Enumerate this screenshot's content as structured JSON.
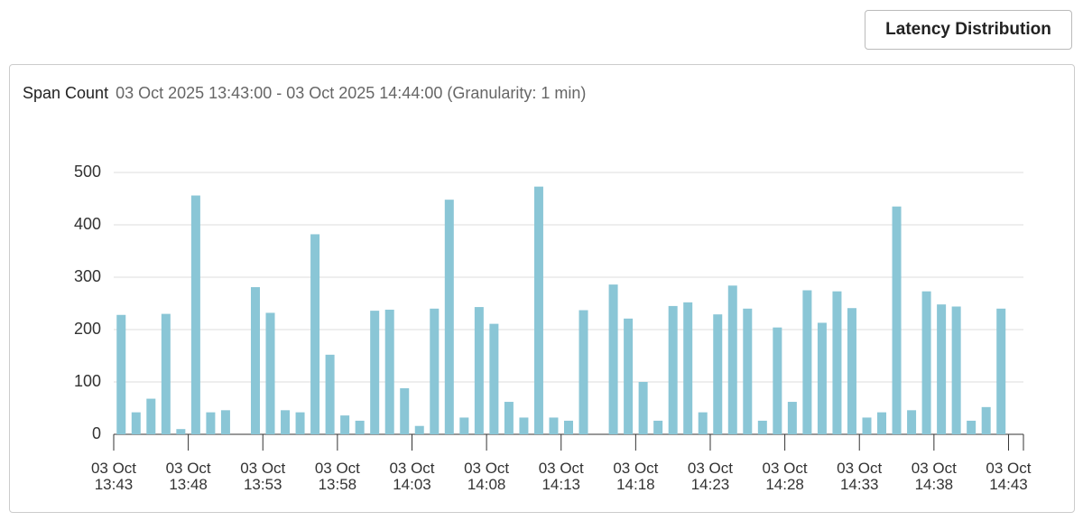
{
  "header": {
    "button": "Latency Distribution"
  },
  "chart_data": {
    "type": "bar",
    "title": "Span Count",
    "subtitle": "03 Oct 2025 13:43:00 - 03 Oct 2025 14:44:00 (Granularity: 1 min)",
    "categories": [
      "03 Oct 13:43",
      null,
      null,
      null,
      null,
      "03 Oct 13:48",
      null,
      null,
      null,
      null,
      "03 Oct 13:53",
      null,
      null,
      null,
      null,
      "03 Oct 13:58",
      null,
      null,
      null,
      null,
      "03 Oct 14:03",
      null,
      null,
      null,
      null,
      "03 Oct 14:08",
      null,
      null,
      null,
      null,
      "03 Oct 14:13",
      null,
      null,
      null,
      null,
      "03 Oct 14:18",
      null,
      null,
      null,
      null,
      "03 Oct 14:23",
      null,
      null,
      null,
      null,
      "03 Oct 14:28",
      null,
      null,
      null,
      null,
      "03 Oct 14:33",
      null,
      null,
      null,
      null,
      "03 Oct 14:38",
      null,
      null,
      null,
      null,
      "03 Oct 14:43"
    ],
    "values": [
      228,
      42,
      68,
      230,
      10,
      456,
      42,
      46,
      0,
      281,
      232,
      46,
      42,
      382,
      152,
      36,
      26,
      236,
      238,
      88,
      16,
      240,
      448,
      32,
      243,
      211,
      62,
      32,
      473,
      32,
      26,
      237,
      0,
      286,
      221,
      100,
      26,
      245,
      252,
      42,
      229,
      284,
      240,
      26,
      204,
      62,
      275,
      213,
      273,
      241,
      32,
      42,
      435,
      46,
      273,
      248,
      244,
      26,
      52,
      240,
      0
    ],
    "color": "#8ac6d6",
    "ylim": [
      0,
      500
    ],
    "yticks": [
      0,
      100,
      200,
      300,
      400,
      500
    ],
    "grid": true
  }
}
